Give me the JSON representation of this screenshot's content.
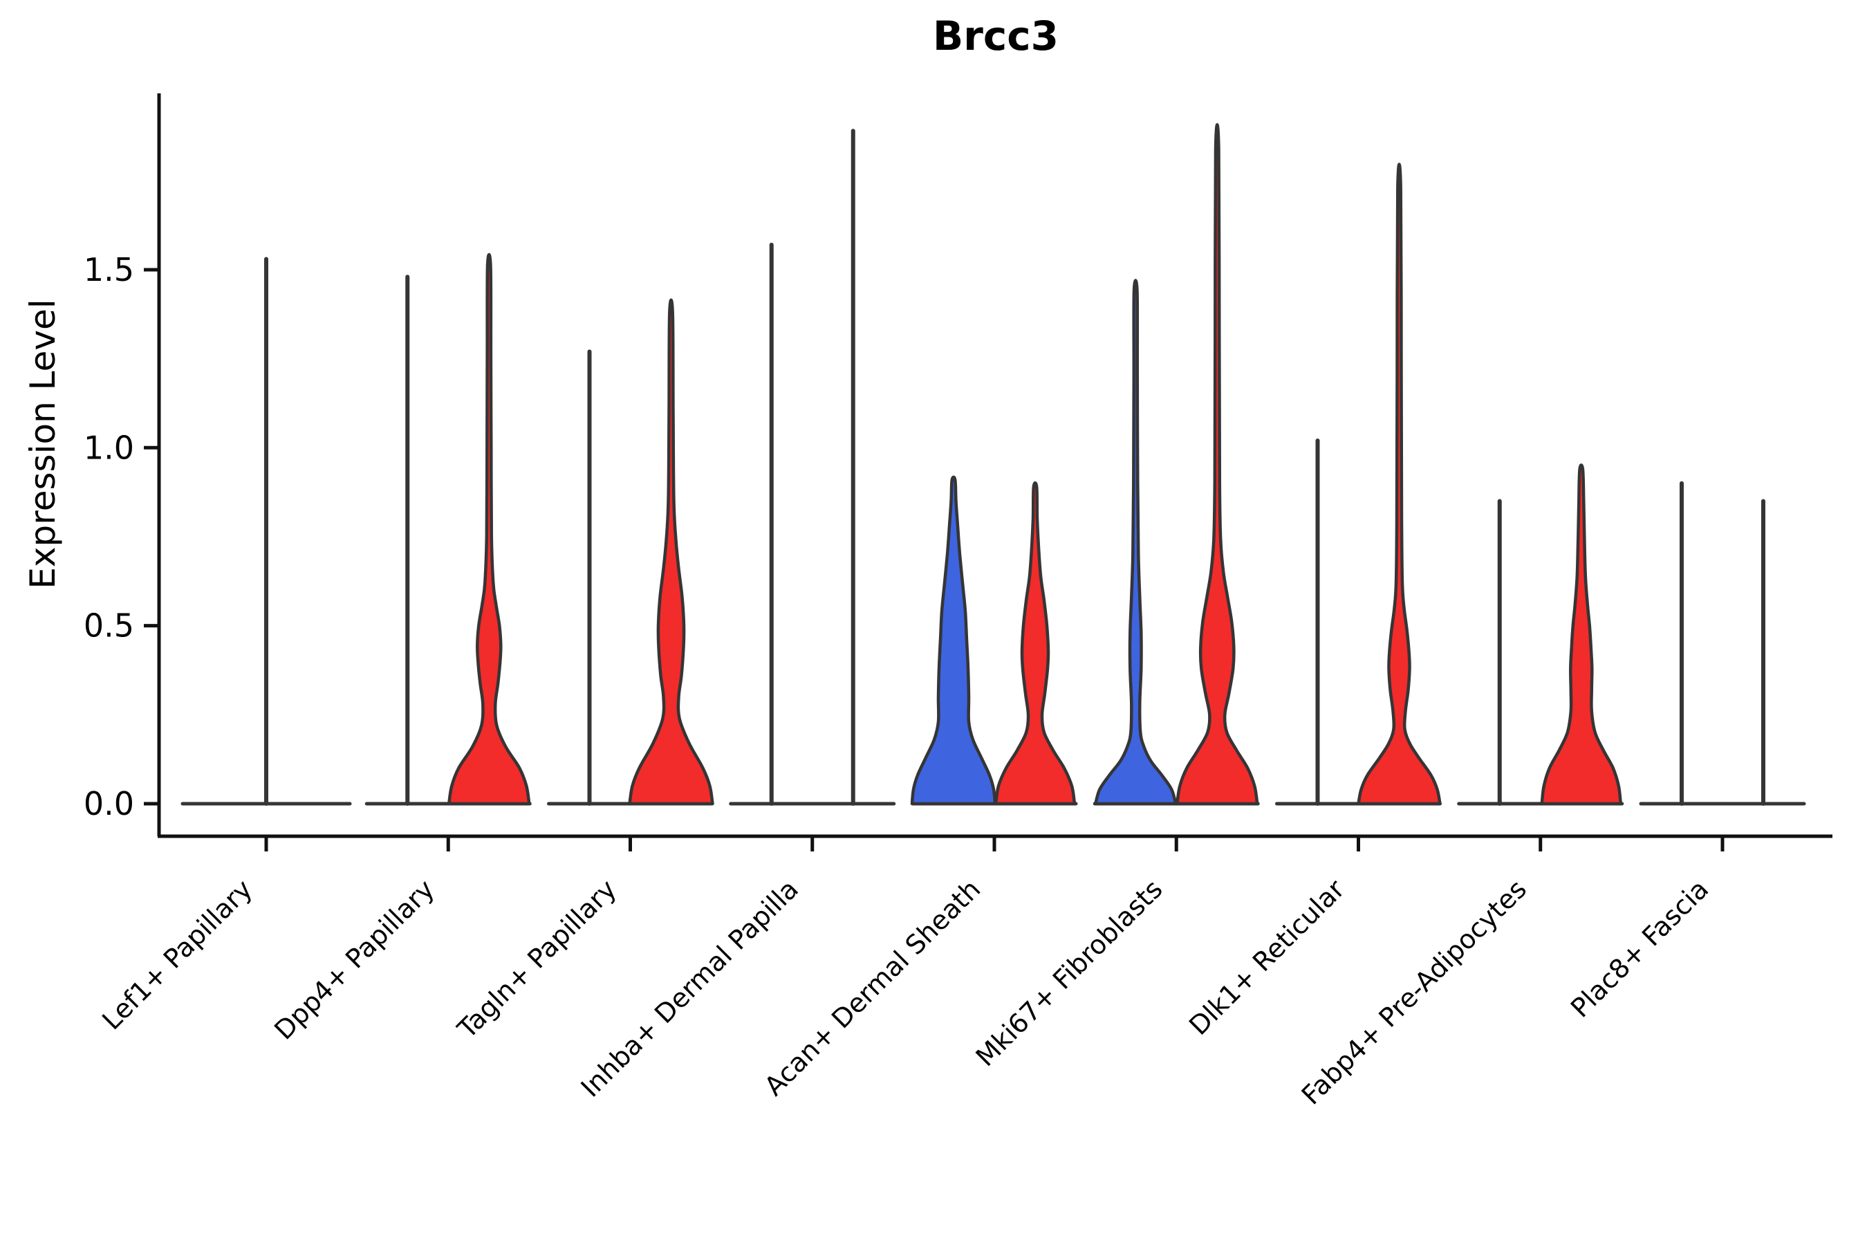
{
  "title": "Brcc3",
  "y_axis": {
    "label": "Expression Level",
    "tick_labels": [
      "0.0",
      "0.5",
      "1.0",
      "1.5"
    ],
    "tick_values": [
      0.0,
      0.5,
      1.0,
      1.5
    ]
  },
  "x_axis": {
    "categories": [
      "Lef1+ Papillary",
      "Dpp4+ Papillary",
      "Tagln+ Papillary",
      "Inhba+ Dermal Papilla",
      "Acan+ Dermal Sheath",
      "Mki67+ Fibroblasts",
      "Dlk1+ Reticular",
      "Fabp4+ Pre-Adipocytes",
      "Plac8+ Fascia"
    ]
  },
  "colors": {
    "blue": "#3E64E0",
    "red": "#F22B2B",
    "outline": "#353535",
    "axis": "#111111",
    "background": "#ffffff"
  },
  "chart_data": {
    "type": "violin",
    "title": "Brcc3",
    "ylabel": "Expression Level",
    "ylim": [
      -0.09,
      2.0
    ],
    "grid": false,
    "legend": "none",
    "categories": [
      "Lef1+ Papillary",
      "Dpp4+ Papillary",
      "Tagln+ Papillary",
      "Inhba+ Dermal Papilla",
      "Acan+ Dermal Sheath",
      "Mki67+ Fibroblasts",
      "Dlk1+ Reticular",
      "Fabp4+ Pre-Adipocytes",
      "Plac8+ Fascia"
    ],
    "violins": [
      {
        "category": "Lef1+ Papillary",
        "position": "single",
        "fill": "none",
        "max_expression": 1.53,
        "shape": "spike"
      },
      {
        "category": "Dpp4+ Papillary",
        "position": "left",
        "fill": "none",
        "max_expression": 1.48,
        "shape": "spike"
      },
      {
        "category": "Dpp4+ Papillary",
        "position": "right",
        "fill": "red",
        "max_expression": 1.51,
        "shape": "violin",
        "profile": [
          [
            0,
            58
          ],
          [
            0.05,
            54
          ],
          [
            0.1,
            44
          ],
          [
            0.16,
            24
          ],
          [
            0.22,
            11
          ],
          [
            0.28,
            9
          ],
          [
            0.34,
            13
          ],
          [
            0.4,
            16
          ],
          [
            0.445,
            17
          ],
          [
            0.5,
            15
          ],
          [
            0.56,
            10
          ],
          [
            0.62,
            6
          ],
          [
            0.75,
            3.5
          ],
          [
            1.0,
            3
          ],
          [
            1.25,
            2.6
          ],
          [
            1.51,
            2.2
          ]
        ]
      },
      {
        "category": "Tagln+ Papillary",
        "position": "left",
        "fill": "none",
        "max_expression": 1.27,
        "shape": "spike"
      },
      {
        "category": "Tagln+ Papillary",
        "position": "right",
        "fill": "red",
        "max_expression": 1.38,
        "shape": "violin",
        "profile": [
          [
            0,
            60
          ],
          [
            0.05,
            56
          ],
          [
            0.1,
            46
          ],
          [
            0.17,
            26
          ],
          [
            0.24,
            12
          ],
          [
            0.3,
            11
          ],
          [
            0.36,
            15
          ],
          [
            0.44,
            18
          ],
          [
            0.5,
            18.5
          ],
          [
            0.58,
            16
          ],
          [
            0.66,
            11
          ],
          [
            0.74,
            7
          ],
          [
            0.85,
            4
          ],
          [
            1.1,
            3
          ],
          [
            1.38,
            2.2
          ]
        ]
      },
      {
        "category": "Inhba+ Dermal Papilla",
        "position": "left",
        "fill": "none",
        "max_expression": 1.57,
        "shape": "spike"
      },
      {
        "category": "Inhba+ Dermal Papilla",
        "position": "right",
        "fill": "none",
        "max_expression": 1.89,
        "shape": "spike"
      },
      {
        "category": "Acan+ Dermal Sheath",
        "position": "left",
        "fill": "blue",
        "max_expression": 0.91,
        "shape": "violin",
        "profile": [
          [
            0,
            60
          ],
          [
            0.04,
            58
          ],
          [
            0.08,
            52
          ],
          [
            0.13,
            40
          ],
          [
            0.18,
            28
          ],
          [
            0.23,
            22
          ],
          [
            0.3,
            22
          ],
          [
            0.38,
            21
          ],
          [
            0.46,
            19
          ],
          [
            0.54,
            17
          ],
          [
            0.62,
            13
          ],
          [
            0.7,
            9
          ],
          [
            0.78,
            6
          ],
          [
            0.85,
            3.5
          ],
          [
            0.91,
            2.2
          ]
        ]
      },
      {
        "category": "Acan+ Dermal Sheath",
        "position": "right",
        "fill": "red",
        "max_expression": 0.89,
        "shape": "violin",
        "profile": [
          [
            0,
            57
          ],
          [
            0.05,
            53
          ],
          [
            0.1,
            42
          ],
          [
            0.15,
            26
          ],
          [
            0.2,
            13
          ],
          [
            0.25,
            10
          ],
          [
            0.31,
            14
          ],
          [
            0.38,
            18
          ],
          [
            0.43,
            19
          ],
          [
            0.5,
            17
          ],
          [
            0.57,
            13
          ],
          [
            0.64,
            8
          ],
          [
            0.72,
            5
          ],
          [
            0.8,
            3
          ],
          [
            0.89,
            2.2
          ]
        ]
      },
      {
        "category": "Mki67+ Fibroblasts",
        "position": "left",
        "fill": "blue",
        "max_expression": 1.44,
        "shape": "violin",
        "profile": [
          [
            0,
            58
          ],
          [
            0.04,
            52
          ],
          [
            0.08,
            38
          ],
          [
            0.12,
            22
          ],
          [
            0.16,
            12
          ],
          [
            0.2,
            7
          ],
          [
            0.28,
            6
          ],
          [
            0.38,
            8
          ],
          [
            0.48,
            8
          ],
          [
            0.58,
            6
          ],
          [
            0.7,
            4
          ],
          [
            0.9,
            3
          ],
          [
            1.2,
            2.5
          ],
          [
            1.44,
            2.2
          ]
        ]
      },
      {
        "category": "Mki67+ Fibroblasts",
        "position": "right",
        "fill": "red",
        "max_expression": 1.84,
        "shape": "violin",
        "profile": [
          [
            0,
            58
          ],
          [
            0.05,
            54
          ],
          [
            0.1,
            44
          ],
          [
            0.15,
            28
          ],
          [
            0.2,
            14
          ],
          [
            0.25,
            11
          ],
          [
            0.31,
            17
          ],
          [
            0.38,
            23
          ],
          [
            0.44,
            24
          ],
          [
            0.51,
            21
          ],
          [
            0.58,
            15
          ],
          [
            0.65,
            9
          ],
          [
            0.74,
            5
          ],
          [
            0.9,
            3.5
          ],
          [
            1.3,
            3
          ],
          [
            1.84,
            2.2
          ]
        ]
      },
      {
        "category": "Dlk1+ Reticular",
        "position": "left",
        "fill": "none",
        "max_expression": 1.02,
        "shape": "spike"
      },
      {
        "category": "Dlk1+ Reticular",
        "position": "right",
        "fill": "red",
        "max_expression": 1.73,
        "shape": "violin",
        "profile": [
          [
            0,
            59
          ],
          [
            0.04,
            55
          ],
          [
            0.08,
            46
          ],
          [
            0.13,
            28
          ],
          [
            0.17,
            15
          ],
          [
            0.21,
            8
          ],
          [
            0.26,
            9
          ],
          [
            0.32,
            13
          ],
          [
            0.38,
            15
          ],
          [
            0.43,
            14
          ],
          [
            0.49,
            11
          ],
          [
            0.55,
            7
          ],
          [
            0.62,
            4.5
          ],
          [
            0.8,
            3.5
          ],
          [
            1.2,
            3
          ],
          [
            1.73,
            2.2
          ]
        ]
      },
      {
        "category": "Fabp4+ Pre-Adipocytes",
        "position": "left",
        "fill": "none",
        "max_expression": 0.85,
        "shape": "spike"
      },
      {
        "category": "Fabp4+ Pre-Adipocytes",
        "position": "right",
        "fill": "red",
        "max_expression": 0.94,
        "shape": "violin",
        "profile": [
          [
            0,
            57
          ],
          [
            0.05,
            54
          ],
          [
            0.1,
            46
          ],
          [
            0.15,
            32
          ],
          [
            0.2,
            20
          ],
          [
            0.26,
            15
          ],
          [
            0.32,
            15
          ],
          [
            0.38,
            15.5
          ],
          [
            0.44,
            14
          ],
          [
            0.5,
            12
          ],
          [
            0.56,
            9
          ],
          [
            0.64,
            6
          ],
          [
            0.75,
            4.5
          ],
          [
            0.85,
            3.5
          ],
          [
            0.94,
            2.2
          ]
        ]
      },
      {
        "category": "Plac8+ Fascia",
        "position": "left",
        "fill": "none",
        "max_expression": 0.9,
        "shape": "spike"
      },
      {
        "category": "Plac8+ Fascia",
        "position": "right",
        "fill": "none",
        "max_expression": 0.85,
        "shape": "spike"
      }
    ]
  }
}
